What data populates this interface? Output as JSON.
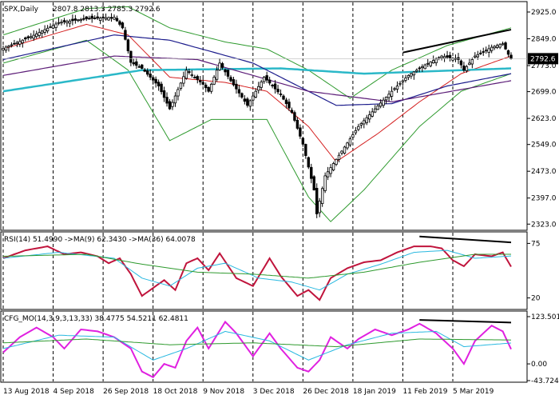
{
  "header": {
    "symbol_tf": "SPX,Daily",
    "ohlc": "2807.8 2813.3 2785.3 2792.6"
  },
  "colors": {
    "price_up": "#000000",
    "ma_teal": "#2bb8c8",
    "ma_navy": "#1c1c8c",
    "ma_purple": "#5c1d78",
    "bb_green": "#2e9a2e",
    "mid_red": "#d42020",
    "rsi_line": "#c0143c",
    "rsi_ma_fast": "#28b8e0",
    "rsi_ma_slow": "#2e9a2e",
    "cfg_line": "#e020e0",
    "cfg_sig1": "#28b8e0",
    "cfg_sig2": "#2e9a2e",
    "current_price_bg": "#000000"
  },
  "chart_data": [
    {
      "type": "candlestick",
      "panel": "price",
      "title": "SPX,Daily",
      "ohlc_last": {
        "open": 2807.8,
        "high": 2813.3,
        "low": 2785.3,
        "close": 2792.6
      },
      "current_price_label": "2792.6",
      "y_ticks": [
        "2925.0",
        "2849.0",
        "2773.0",
        "2699.0",
        "2623.0",
        "2549.0",
        "2473.0",
        "2397.0",
        "2323.0"
      ],
      "ylim": [
        2310,
        2950
      ],
      "x_labels": [
        "13 Aug 2018",
        "4 Sep 2018",
        "26 Sep 2018",
        "18 Oct 2018",
        "9 Nov 2018",
        "3 Dec 2018",
        "26 Dec 2018",
        "18 Jan 2019",
        "11 Feb 2019",
        "5 Mar 2019"
      ],
      "n_bars": 153,
      "close_anchors": [
        [
          0,
          2822
        ],
        [
          10,
          2855
        ],
        [
          20,
          2895
        ],
        [
          30,
          2906
        ],
        [
          40,
          2910
        ],
        [
          43,
          2880
        ],
        [
          46,
          2782
        ],
        [
          50,
          2765
        ],
        [
          56,
          2715
        ],
        [
          60,
          2650
        ],
        [
          66,
          2760
        ],
        [
          72,
          2720
        ],
        [
          74,
          2700
        ],
        [
          78,
          2780
        ],
        [
          82,
          2730
        ],
        [
          88,
          2660
        ],
        [
          94,
          2740
        ],
        [
          100,
          2690
        ],
        [
          104,
          2640
        ],
        [
          108,
          2550
        ],
        [
          112,
          2420
        ],
        [
          113,
          2352
        ],
        [
          116,
          2460
        ],
        [
          122,
          2530
        ],
        [
          128,
          2600
        ],
        [
          134,
          2650
        ],
        [
          140,
          2700
        ],
        [
          146,
          2745
        ],
        [
          152,
          2775
        ],
        [
          158,
          2800
        ],
        [
          164,
          2790
        ],
        [
          166,
          2760
        ],
        [
          170,
          2800
        ],
        [
          176,
          2825
        ],
        [
          180,
          2835
        ],
        [
          182,
          2805
        ],
        [
          183,
          2792.6
        ]
      ],
      "overlays": [
        {
          "name": "MA slow (teal)",
          "color_key": "ma_teal",
          "values_anchor": [
            [
              0,
              2700
            ],
            [
              50,
              2760
            ],
            [
              100,
              2765
            ],
            [
              130,
              2750
            ],
            [
              183,
              2765
            ]
          ]
        },
        {
          "name": "MA (navy)",
          "color_key": "ma_navy",
          "values_anchor": [
            [
              0,
              2790
            ],
            [
              40,
              2860
            ],
            [
              60,
              2845
            ],
            [
              90,
              2780
            ],
            [
              120,
              2660
            ],
            [
              140,
              2665
            ],
            [
              160,
              2715
            ],
            [
              183,
              2750
            ]
          ]
        },
        {
          "name": "MA (purple)",
          "color_key": "ma_purple",
          "values_anchor": [
            [
              0,
              2745
            ],
            [
              40,
              2800
            ],
            [
              70,
              2790
            ],
            [
              110,
              2700
            ],
            [
              140,
              2670
            ],
            [
              183,
              2730
            ]
          ]
        }
      ],
      "bollinger": {
        "upper_anchor": [
          [
            0,
            2860
          ],
          [
            30,
            2935
          ],
          [
            45,
            2940
          ],
          [
            60,
            2880
          ],
          [
            80,
            2840
          ],
          [
            95,
            2820
          ],
          [
            110,
            2760
          ],
          [
            125,
            2680
          ],
          [
            140,
            2760
          ],
          [
            160,
            2830
          ],
          [
            183,
            2880
          ]
        ],
        "lower_anchor": [
          [
            0,
            2780
          ],
          [
            30,
            2845
          ],
          [
            45,
            2760
          ],
          [
            60,
            2560
          ],
          [
            75,
            2620
          ],
          [
            95,
            2620
          ],
          [
            110,
            2400
          ],
          [
            118,
            2330
          ],
          [
            130,
            2420
          ],
          [
            150,
            2600
          ],
          [
            165,
            2700
          ],
          [
            183,
            2750
          ]
        ],
        "mid_anchor": [
          [
            0,
            2820
          ],
          [
            30,
            2890
          ],
          [
            45,
            2860
          ],
          [
            60,
            2740
          ],
          [
            80,
            2725
          ],
          [
            95,
            2700
          ],
          [
            110,
            2600
          ],
          [
            120,
            2500
          ],
          [
            135,
            2580
          ],
          [
            150,
            2670
          ],
          [
            165,
            2750
          ],
          [
            183,
            2800
          ]
        ]
      },
      "trendline": {
        "from": [
          144,
          2810
        ],
        "to": [
          183,
          2875
        ]
      }
    },
    {
      "type": "line",
      "panel": "oscillator",
      "title": "RSI(14) 51.4990 ->MA(9) 62.3430 ->MA(36) 64.0078",
      "y_ticks": [
        "75",
        "20"
      ],
      "ylim": [
        10,
        85
      ],
      "series": [
        {
          "name": "RSI(14)",
          "color_key": "rsi_line",
          "anchor": [
            [
              0,
              60
            ],
            [
              8,
              68
            ],
            [
              16,
              72
            ],
            [
              22,
              64
            ],
            [
              28,
              66
            ],
            [
              34,
              62
            ],
            [
              38,
              55
            ],
            [
              42,
              60
            ],
            [
              46,
              44
            ],
            [
              50,
              22
            ],
            [
              54,
              30
            ],
            [
              58,
              38
            ],
            [
              62,
              28
            ],
            [
              66,
              55
            ],
            [
              70,
              60
            ],
            [
              74,
              48
            ],
            [
              78,
              65
            ],
            [
              84,
              40
            ],
            [
              90,
              32
            ],
            [
              96,
              60
            ],
            [
              100,
              42
            ],
            [
              106,
              22
            ],
            [
              110,
              28
            ],
            [
              114,
              18
            ],
            [
              118,
              40
            ],
            [
              124,
              50
            ],
            [
              130,
              56
            ],
            [
              136,
              58
            ],
            [
              142,
              66
            ],
            [
              148,
              72
            ],
            [
              154,
              72
            ],
            [
              158,
              70
            ],
            [
              162,
              58
            ],
            [
              166,
              52
            ],
            [
              170,
              64
            ],
            [
              176,
              62
            ],
            [
              180,
              66
            ],
            [
              183,
              51.5
            ]
          ]
        },
        {
          "name": "MA(9)",
          "color_key": "rsi_ma_fast",
          "anchor": [
            [
              0,
              60
            ],
            [
              20,
              66
            ],
            [
              40,
              60
            ],
            [
              50,
              40
            ],
            [
              60,
              32
            ],
            [
              70,
              50
            ],
            [
              80,
              55
            ],
            [
              92,
              40
            ],
            [
              104,
              36
            ],
            [
              114,
              28
            ],
            [
              124,
              44
            ],
            [
              136,
              54
            ],
            [
              148,
              66
            ],
            [
              160,
              68
            ],
            [
              170,
              60
            ],
            [
              183,
              62.3
            ]
          ]
        },
        {
          "name": "MA(36)",
          "color_key": "rsi_ma_slow",
          "anchor": [
            [
              0,
              62
            ],
            [
              30,
              64
            ],
            [
              50,
              54
            ],
            [
              70,
              46
            ],
            [
              90,
              44
            ],
            [
              110,
              40
            ],
            [
              130,
              46
            ],
            [
              150,
              56
            ],
            [
              170,
              64
            ],
            [
              183,
              64.0
            ]
          ]
        }
      ],
      "trendline": {
        "from": [
          150,
          82
        ],
        "to": [
          183,
          76
        ]
      }
    },
    {
      "type": "line",
      "panel": "oscillator",
      "title": "CFG_MO(14,3,9,3,13,33) 38.4775 54.5211 62.4811",
      "y_ticks": [
        "123.5015",
        "0.00",
        "-43.7249"
      ],
      "ylim": [
        -43.7249,
        123.5015
      ],
      "series": [
        {
          "name": "CFG_MO",
          "color_key": "cfg_line",
          "anchor": [
            [
              0,
              30
            ],
            [
              6,
              70
            ],
            [
              12,
              95
            ],
            [
              18,
              70
            ],
            [
              22,
              40
            ],
            [
              28,
              90
            ],
            [
              34,
              85
            ],
            [
              40,
              70
            ],
            [
              46,
              40
            ],
            [
              50,
              -20
            ],
            [
              54,
              -35
            ],
            [
              58,
              0
            ],
            [
              62,
              -10
            ],
            [
              66,
              60
            ],
            [
              70,
              95
            ],
            [
              74,
              40
            ],
            [
              80,
              110
            ],
            [
              84,
              80
            ],
            [
              90,
              20
            ],
            [
              96,
              80
            ],
            [
              100,
              40
            ],
            [
              106,
              -10
            ],
            [
              110,
              -20
            ],
            [
              114,
              10
            ],
            [
              118,
              70
            ],
            [
              124,
              40
            ],
            [
              128,
              65
            ],
            [
              134,
              90
            ],
            [
              140,
              75
            ],
            [
              146,
              90
            ],
            [
              150,
              105
            ],
            [
              156,
              80
            ],
            [
              162,
              40
            ],
            [
              166,
              0
            ],
            [
              170,
              60
            ],
            [
              176,
              100
            ],
            [
              180,
              85
            ],
            [
              183,
              38.5
            ]
          ]
        },
        {
          "name": "signal 1",
          "color_key": "cfg_sig1",
          "anchor": [
            [
              0,
              40
            ],
            [
              20,
              75
            ],
            [
              40,
              70
            ],
            [
              54,
              10
            ],
            [
              66,
              40
            ],
            [
              80,
              85
            ],
            [
              96,
              60
            ],
            [
              110,
              10
            ],
            [
              124,
              50
            ],
            [
              140,
              80
            ],
            [
              156,
              85
            ],
            [
              166,
              45
            ],
            [
              183,
              54.5
            ]
          ]
        },
        {
          "name": "signal 2",
          "color_key": "cfg_sig2",
          "anchor": [
            [
              0,
              55
            ],
            [
              30,
              65
            ],
            [
              60,
              50
            ],
            [
              90,
              55
            ],
            [
              120,
              45
            ],
            [
              150,
              65
            ],
            [
              183,
              62.5
            ]
          ]
        }
      ],
      "trendline": {
        "from": [
          150,
          115
        ],
        "to": [
          183,
          108
        ]
      }
    }
  ]
}
